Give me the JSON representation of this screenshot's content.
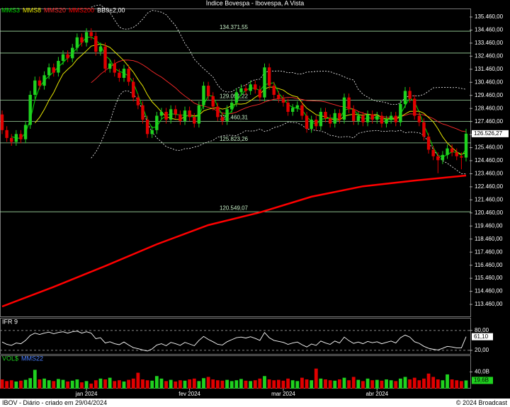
{
  "chart_data": [
    {
      "type": "candlestick",
      "title": "Índice Bovespa - Ibovespa, A Vista",
      "legend": [
        {
          "name": "MMS3",
          "color": "#00e000"
        },
        {
          "name": "MMS8",
          "color": "#e6e600"
        },
        {
          "name": "MMS20",
          "color": "#ff2a2a"
        },
        {
          "name": "MMS200",
          "color": "#ff0000"
        },
        {
          "name": "BB9±2,00",
          "color": "#ffffff"
        }
      ],
      "up_color": "#1fd21f",
      "down_color": "#e00000",
      "categories": [
        null,
        null,
        null,
        null,
        null,
        null,
        null,
        null,
        null,
        null,
        null,
        null,
        null,
        null,
        null,
        null,
        null,
        null,
        "jan 2024",
        null,
        null,
        null,
        null,
        null,
        null,
        null,
        null,
        null,
        null,
        null,
        null,
        null,
        null,
        null,
        null,
        null,
        null,
        null,
        null,
        null,
        "fev 2024",
        null,
        null,
        null,
        null,
        null,
        null,
        null,
        null,
        null,
        null,
        null,
        null,
        null,
        null,
        null,
        null,
        null,
        null,
        null,
        "mar 2024",
        null,
        null,
        null,
        null,
        null,
        null,
        null,
        null,
        null,
        null,
        null,
        null,
        null,
        null,
        null,
        null,
        null,
        null,
        null,
        "abr 2024",
        null,
        null,
        null,
        null,
        null,
        null,
        null,
        null,
        null,
        null,
        null,
        null,
        null,
        null,
        null,
        null,
        null,
        null,
        null
      ],
      "open": [
        128000,
        126800,
        126200,
        125900,
        126500,
        126100,
        127200,
        129500,
        130600,
        130200,
        131000,
        131600,
        131200,
        132100,
        132600,
        132300,
        133100,
        133900,
        133500,
        134300,
        134000,
        132800,
        133200,
        131500,
        131900,
        131200,
        130800,
        131500,
        130500,
        129300,
        128700,
        127600,
        126500,
        126800,
        127900,
        128200,
        127600,
        128400,
        128000,
        127500,
        128300,
        127800,
        127300,
        128700,
        130200,
        129400,
        128600,
        127800,
        127500,
        128400,
        128900,
        129700,
        130000,
        129800,
        130300,
        129900,
        129300,
        131600,
        130200,
        129500,
        129200,
        128900,
        128200,
        128500,
        128700,
        127900,
        126900,
        127600,
        127100,
        128200,
        127700,
        127300,
        128100,
        127600,
        129300,
        128400,
        127500,
        127900,
        127400,
        128000,
        127600,
        127900,
        127300,
        127600,
        127900,
        127400,
        128800,
        129800,
        129200,
        127900,
        127400,
        126300,
        125300,
        124800,
        124500,
        124900,
        125400,
        125100,
        124800,
        124700
      ],
      "high": [
        128300,
        127100,
        126500,
        126800,
        126800,
        127500,
        129800,
        130900,
        130900,
        131300,
        131900,
        131900,
        132400,
        132900,
        132900,
        133400,
        134200,
        134200,
        134600,
        134600,
        134300,
        133500,
        133500,
        132200,
        132200,
        131500,
        131800,
        131800,
        130800,
        129600,
        129000,
        127900,
        127100,
        128200,
        128500,
        128500,
        128700,
        128700,
        128300,
        128600,
        128600,
        128100,
        129000,
        130500,
        130500,
        129700,
        128900,
        128100,
        128700,
        129200,
        130000,
        130300,
        130300,
        130600,
        130600,
        130200,
        131900,
        131900,
        130500,
        129800,
        129500,
        129200,
        128800,
        129000,
        129000,
        128200,
        127900,
        127900,
        128500,
        128500,
        128000,
        128400,
        128400,
        129600,
        129600,
        128700,
        128200,
        128200,
        128300,
        128300,
        128200,
        128200,
        127900,
        128200,
        128200,
        129100,
        130100,
        130100,
        129500,
        128200,
        127700,
        126600,
        125600,
        125100,
        125200,
        125700,
        125700,
        125400,
        125100,
        126900
      ],
      "low": [
        126500,
        125900,
        125600,
        125600,
        125800,
        125800,
        126900,
        129200,
        129900,
        129900,
        130700,
        130900,
        130900,
        131800,
        132000,
        132000,
        132800,
        133200,
        133200,
        133700,
        132500,
        132500,
        131200,
        131200,
        130900,
        130500,
        130500,
        130200,
        129000,
        128400,
        127300,
        126200,
        126200,
        126500,
        127600,
        127300,
        127300,
        127700,
        127200,
        127200,
        127500,
        127000,
        127000,
        128400,
        129100,
        128300,
        127500,
        127200,
        127200,
        128100,
        128600,
        129400,
        129500,
        129500,
        129600,
        129000,
        129000,
        129900,
        129200,
        128900,
        128600,
        127900,
        127900,
        128200,
        127600,
        126600,
        126600,
        126800,
        126800,
        127400,
        127000,
        127000,
        127300,
        127300,
        128100,
        127200,
        127200,
        127100,
        127100,
        127300,
        127300,
        127000,
        127000,
        127300,
        127100,
        127100,
        128500,
        128900,
        127600,
        127100,
        126000,
        125000,
        124500,
        123500,
        124200,
        124600,
        124800,
        124500,
        123800,
        124400
      ],
      "close": [
        126800,
        126200,
        125900,
        126500,
        126100,
        127200,
        129500,
        130600,
        130200,
        131000,
        131600,
        131200,
        132100,
        132600,
        132300,
        133100,
        133900,
        133500,
        134300,
        134000,
        132800,
        133200,
        131500,
        131900,
        131200,
        130800,
        131500,
        130500,
        129300,
        128700,
        127600,
        126500,
        126800,
        127900,
        128200,
        127600,
        128400,
        128000,
        127500,
        128300,
        127800,
        127300,
        128700,
        130200,
        129400,
        128600,
        127800,
        127500,
        128400,
        128900,
        129700,
        130000,
        129800,
        130300,
        129900,
        129300,
        131600,
        130200,
        129500,
        129200,
        128900,
        128200,
        128500,
        128700,
        127900,
        126900,
        127600,
        127100,
        128200,
        127700,
        127300,
        128100,
        127600,
        129300,
        128400,
        127500,
        127900,
        127400,
        128000,
        127600,
        127900,
        127300,
        127600,
        127900,
        127400,
        128800,
        129800,
        129200,
        127900,
        127400,
        126300,
        125300,
        124800,
        124500,
        124900,
        125400,
        125100,
        124800,
        124700,
        126526.27
      ],
      "close_label": "126.526,27",
      "mms200": {
        "x": [
          0,
          11,
          22,
          33,
          44,
          55,
          66,
          77,
          88,
          99
        ],
        "values": [
          113300,
          114800,
          116400,
          118060,
          119530,
          120500,
          121700,
          122500,
          122940,
          123320
        ]
      },
      "levels": [
        {
          "value": 134371.55,
          "label": "134.371,55"
        },
        {
          "value": 132700,
          "label": null
        },
        {
          "value": 129091.22,
          "label": "129.091,22"
        },
        {
          "value": 127460.31,
          "label": "127.460,31"
        },
        {
          "value": 125823.26,
          "label": "125.823,26"
        },
        {
          "value": 120549.07,
          "label": "120.549,07"
        }
      ],
      "ylim": [
        112540,
        136110
      ],
      "yticks": [
        {
          "value": 135460,
          "label": "135.460,00"
        },
        {
          "value": 134460,
          "label": "134.460,00"
        },
        {
          "value": 133460,
          "label": "133.460,00"
        },
        {
          "value": 132460,
          "label": "132.460,00"
        },
        {
          "value": 131460,
          "label": "131.460,00"
        },
        {
          "value": 130460,
          "label": "130.460,00"
        },
        {
          "value": 129460,
          "label": "129.460,00"
        },
        {
          "value": 128460,
          "label": "128.460,00"
        },
        {
          "value": 127460,
          "label": "127.460,00"
        },
        {
          "value": 126460,
          "label": "126.460,00"
        },
        {
          "value": 125460,
          "label": "125.460,00"
        },
        {
          "value": 124460,
          "label": "124.460,00"
        },
        {
          "value": 123460,
          "label": "123.460,00"
        },
        {
          "value": 122460,
          "label": "122.460,00"
        },
        {
          "value": 121460,
          "label": "121.460,00"
        },
        {
          "value": 120460,
          "label": "120.460,00"
        },
        {
          "value": 119460,
          "label": "119.460,00"
        },
        {
          "value": 118460,
          "label": "118.460,00"
        },
        {
          "value": 117460,
          "label": "117.460,00"
        },
        {
          "value": 116460,
          "label": "116.460,00"
        },
        {
          "value": 115460,
          "label": "115.460,00"
        },
        {
          "value": 114460,
          "label": "114.460,00"
        },
        {
          "value": 113460,
          "label": "113.460,00"
        }
      ]
    },
    {
      "type": "line",
      "title": "IFR 9",
      "color": "#ffffff",
      "values": [
        45,
        38,
        35,
        42,
        40,
        50,
        65,
        72,
        68,
        72,
        75,
        70,
        74,
        76,
        72,
        76,
        78,
        72,
        76,
        72,
        55,
        58,
        42,
        46,
        40,
        37,
        45,
        36,
        28,
        25,
        21,
        18,
        24,
        36,
        40,
        34,
        44,
        40,
        35,
        44,
        39,
        34,
        50,
        62,
        53,
        46,
        38,
        36,
        46,
        52,
        58,
        60,
        57,
        61,
        56,
        50,
        74,
        58,
        50,
        47,
        44,
        38,
        42,
        45,
        37,
        30,
        39,
        35,
        48,
        42,
        38,
        48,
        42,
        60,
        49,
        41,
        45,
        40,
        47,
        43,
        46,
        40,
        44,
        48,
        42,
        58,
        66,
        60,
        46,
        41,
        32,
        26,
        23,
        21,
        26,
        32,
        30,
        27,
        27,
        61.1
      ],
      "last_label": "61,10",
      "ylim": [
        7,
        116
      ],
      "yticks": [
        {
          "value": 80,
          "label": "80,00"
        },
        {
          "value": 20,
          "label": "20,00"
        }
      ],
      "grid": true
    },
    {
      "type": "bar",
      "title": "VOL$",
      "legend": [
        {
          "name": "MMS22",
          "color": "#4a7fff"
        }
      ],
      "values": [
        22,
        18,
        20,
        17,
        19,
        21,
        25,
        45,
        22,
        24,
        20,
        18,
        23,
        21,
        17,
        19,
        22,
        15,
        18,
        12,
        20,
        24,
        22,
        26,
        18,
        20,
        17,
        21,
        24,
        38,
        22,
        20,
        19,
        30,
        24,
        18,
        21,
        17,
        20,
        19,
        22,
        24,
        18,
        25,
        28,
        22,
        20,
        19,
        21,
        18,
        20,
        23,
        19,
        18,
        20,
        24,
        30,
        22,
        20,
        21,
        19,
        24,
        20,
        18,
        26,
        22,
        20,
        48,
        24,
        22,
        20,
        19,
        22,
        26,
        20,
        28,
        21,
        18,
        24,
        20,
        21,
        19,
        22,
        20,
        18,
        24,
        28,
        22,
        26,
        20,
        24,
        36,
        28,
        22,
        20,
        34,
        22,
        20,
        18,
        19.6
      ],
      "last_label": "19,6B",
      "ylim": [
        0,
        78
      ],
      "yticks": [
        {
          "value": 40,
          "label": "40,0B"
        }
      ]
    }
  ],
  "footer": {
    "left": "IBOV - Diário - criado em 29/04/2024",
    "right": "© 2024 Broadcast"
  }
}
